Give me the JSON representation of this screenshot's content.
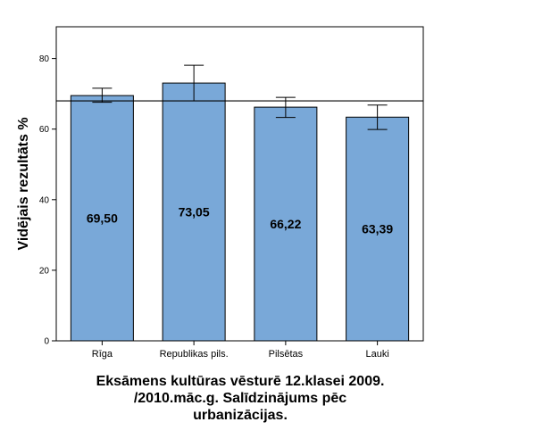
{
  "chart_data": {
    "type": "bar",
    "categories": [
      "Rīga",
      "Republikas pils.",
      "Pilsētas",
      "Lauki"
    ],
    "values": [
      69.5,
      73.05,
      66.22,
      63.39
    ],
    "value_labels": [
      "69,50",
      "73,05",
      "66,22",
      "63,39"
    ],
    "error_bars": [
      {
        "low": 67.6,
        "high": 71.6
      },
      {
        "low": 68.0,
        "high": 78.1
      },
      {
        "low": 63.3,
        "high": 69.0
      },
      {
        "low": 59.9,
        "high": 66.8
      }
    ],
    "reference_line": 68.0,
    "ylabel": "Vidējais rezultāts %",
    "xlabel": "",
    "ylim": [
      0,
      88
    ],
    "yticks": [
      0,
      20,
      40,
      60,
      80
    ],
    "grid": false,
    "bar_color": "#79a8d8",
    "title_lines": [
      "Eksāmens kultūras vēsturē 12.klasei 2009.",
      "/2010.māc.g. Salīdzinājums pēc",
      "urbanizācijas."
    ]
  }
}
